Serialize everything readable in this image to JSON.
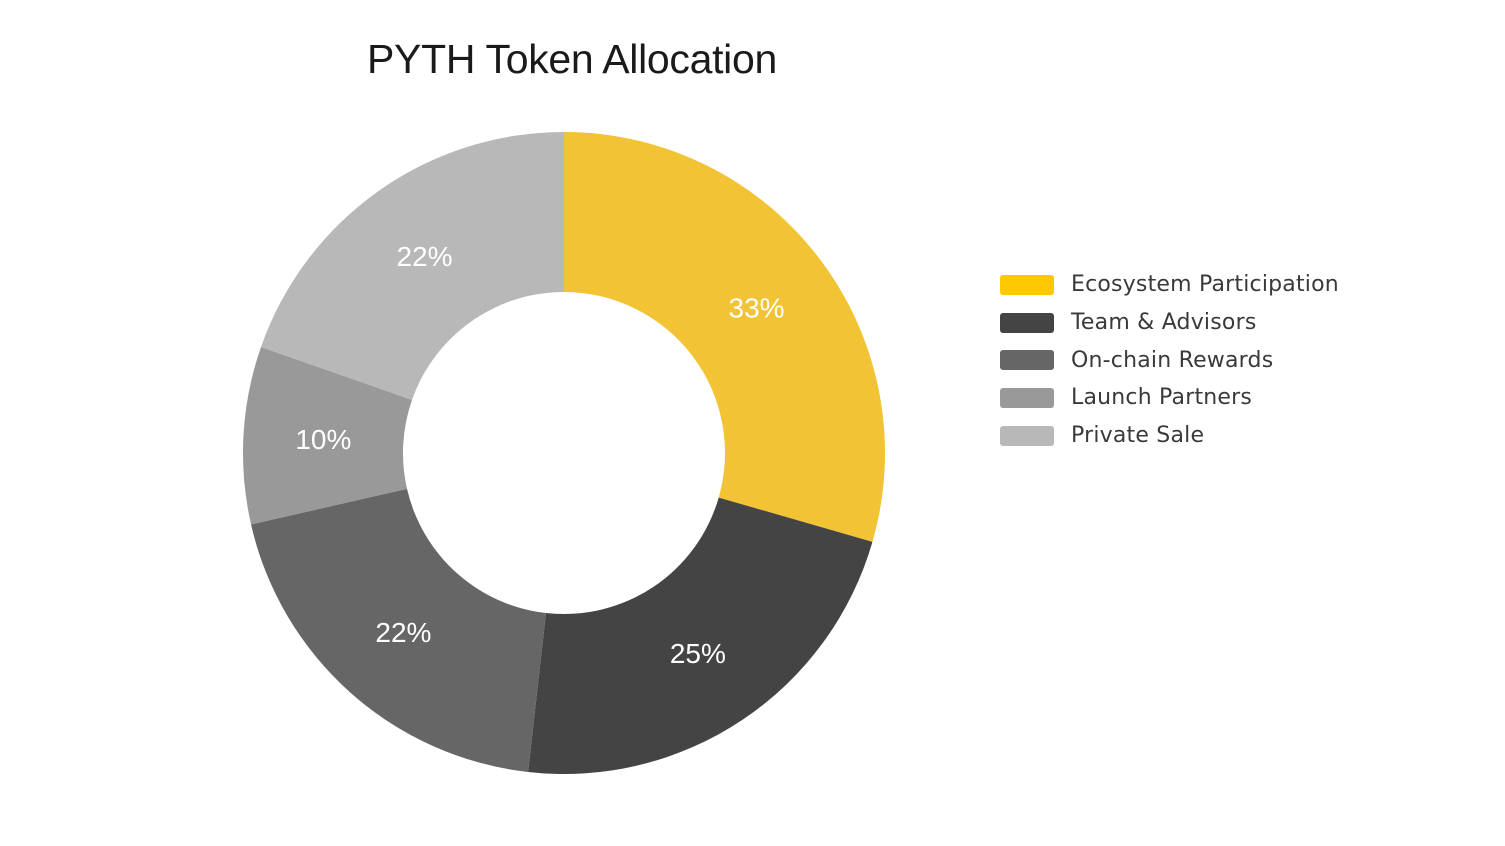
{
  "chart_data": {
    "type": "pie",
    "title": "PYTH Token Allocation",
    "donut": true,
    "legend_position": "right",
    "slices": [
      {
        "label": "Ecosystem Participation",
        "value": 33,
        "display": "33%",
        "color": "#F2C335",
        "legend_color": "#FFC800"
      },
      {
        "label": "Team & Advisors",
        "value": 25,
        "display": "25%",
        "color": "#444444",
        "legend_color": "#444444"
      },
      {
        "label": "On-chain Rewards",
        "value": 22,
        "display": "22%",
        "color": "#666666",
        "legend_color": "#666666"
      },
      {
        "label": "Launch Partners",
        "value": 10,
        "display": "10%",
        "color": "#999999",
        "legend_color": "#999999"
      },
      {
        "label": "Private Sale",
        "value": 22,
        "display": "22%",
        "color": "#B8B8B8",
        "legend_color": "#B8B8B8"
      }
    ]
  }
}
